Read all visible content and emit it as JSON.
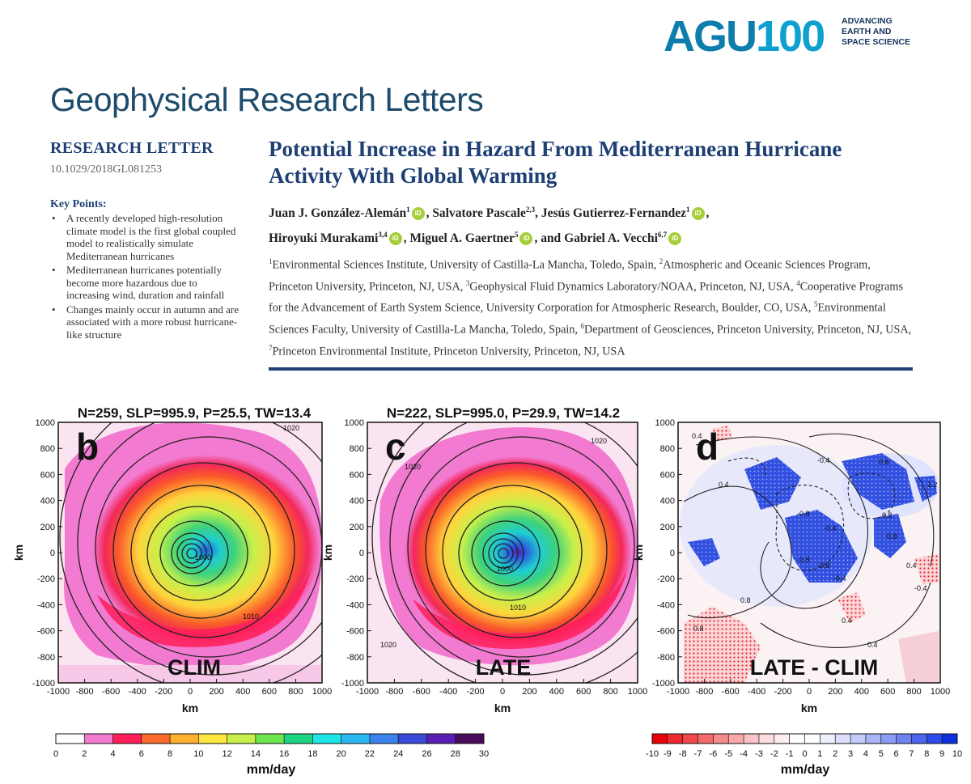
{
  "logo": {
    "mark_a": "AGU",
    "mark_b": "100",
    "tagline": [
      "ADVANCING",
      "EARTH AND",
      "SPACE SCIENCE"
    ],
    "colors": {
      "agu": "#0d7eab",
      "num": "#0ea1cf"
    }
  },
  "journal": "Geophysical Research Letters",
  "article_type": "RESEARCH LETTER",
  "doi": "10.1029/2018GL081253",
  "key_points_heading": "Key Points:",
  "key_points": [
    "A recently developed high-resolution climate model is the first global coupled model to realistically simulate Mediterranean hurricanes",
    "Mediterranean hurricanes potentially become more hazardous due to increasing wind, duration and rainfall",
    "Changes mainly occur in autumn and are associated with a more robust hurricane-like structure"
  ],
  "title": "Potential Increase in Hazard From Mediterranean Hurricane Activity With Global Warming",
  "authors": [
    {
      "name": "Juan J. González-Alemán",
      "sup": "1",
      "orcid": true,
      "sep": ", "
    },
    {
      "name": "Salvatore Pascale",
      "sup": "2,3",
      "orcid": false,
      "sep": ", "
    },
    {
      "name": "Jesús Gutierrez-Fernandez",
      "sup": "1",
      "orcid": true,
      "sep": ","
    },
    {
      "name": "Hiroyuki Murakami",
      "sup": "3,4",
      "orcid": true,
      "sep": ", "
    },
    {
      "name": "Miguel A. Gaertner",
      "sup": "5",
      "orcid": true,
      "sep": ", and "
    },
    {
      "name": "Gabriel A. Vecchi",
      "sup": "6,7",
      "orcid": true,
      "sep": ""
    }
  ],
  "orcid_label": "iD",
  "affiliations": [
    {
      "sup": "1",
      "text": "Environmental Sciences Institute, University of Castilla-La Mancha, Toledo, Spain, "
    },
    {
      "sup": "2",
      "text": "Atmospheric and Oceanic Sciences Program, Princeton University, Princeton, NJ, USA, "
    },
    {
      "sup": "3",
      "text": "Geophysical Fluid Dynamics Laboratory/NOAA, Princeton, NJ, USA, "
    },
    {
      "sup": "4",
      "text": "Cooperative Programs for the Advancement of Earth System Science, University Corporation for Atmospheric Research, Boulder, CO, USA, "
    },
    {
      "sup": "5",
      "text": "Environmental Sciences Faculty, University of Castilla-La Mancha, Toledo, Spain, "
    },
    {
      "sup": "6",
      "text": "Department of Geosciences, Princeton University, Princeton, NJ, USA, "
    },
    {
      "sup": "7",
      "text": "Princeton Environmental Institute, Princeton University, Princeton, NJ, USA"
    }
  ],
  "figure": {
    "panels": [
      {
        "letter": "b",
        "stats": "N=259, SLP=995.9, P=25.5, TW=13.4",
        "bottom_label": "CLIM",
        "contours": [
          "1020",
          "1000",
          "1010"
        ]
      },
      {
        "letter": "c",
        "stats": "N=222, SLP=995.0, P=29.9, TW=14.2",
        "bottom_label": "LATE",
        "contours": [
          "1020",
          "1020",
          "1000",
          "1010",
          "1020"
        ]
      },
      {
        "letter": "d",
        "stats": "",
        "bottom_label": "LATE - CLIM",
        "contours": [
          "0.4",
          "-0.4",
          "0.4",
          "-0.8",
          "-0.4",
          "0.8",
          "0.8",
          "0.8",
          "1.2",
          "-0.8",
          "-0.8",
          "-0.4",
          "0.4",
          "-0.4",
          "0.8",
          "0.4",
          "0.4",
          "0.8"
        ]
      }
    ],
    "x_ticks": [
      "-1000",
      "-800",
      "-600",
      "-400",
      "-200",
      "0",
      "200",
      "400",
      "600",
      "800",
      "1000"
    ],
    "y_ticks": [
      "1000",
      "800",
      "600",
      "400",
      "200",
      "0",
      "-200",
      "-400",
      "-600",
      "-800",
      "-1000"
    ],
    "axis_unit": "km",
    "colorbar_left": {
      "ticks": [
        "0",
        "2",
        "4",
        "6",
        "8",
        "10",
        "12",
        "14",
        "16",
        "18",
        "20",
        "22",
        "24",
        "26",
        "28",
        "30"
      ],
      "colors": [
        "#ffffff",
        "#f27ad0",
        "#ff1e5a",
        "#fa6a2a",
        "#ffb030",
        "#ffe640",
        "#c8f04a",
        "#6ee650",
        "#1ed284",
        "#1ee6e6",
        "#2ab8f2",
        "#3c82ec",
        "#3a4ad8",
        "#5a1eb4",
        "#4a0a5a"
      ],
      "unit": "mm/day"
    },
    "colorbar_right": {
      "ticks": [
        "-10",
        "-9",
        "-8",
        "-7",
        "-6",
        "-5",
        "-4",
        "-3",
        "-2",
        "-1",
        "0",
        "1",
        "2",
        "3",
        "4",
        "5",
        "6",
        "7",
        "8",
        "9",
        "10"
      ],
      "colors": [
        "#e8000a",
        "#ee2a2e",
        "#f24a4c",
        "#f46a6c",
        "#f68a8c",
        "#f8a8aa",
        "#fac4c6",
        "#fcdcdc",
        "#feeeee",
        "#ffffff",
        "#ffffff",
        "#eef0fe",
        "#dce0fc",
        "#c4ccfa",
        "#aab4f8",
        "#8c9cf6",
        "#6c82f2",
        "#4c66ee",
        "#2e4aea",
        "#1030e0"
      ],
      "unit": "mm/day"
    }
  }
}
